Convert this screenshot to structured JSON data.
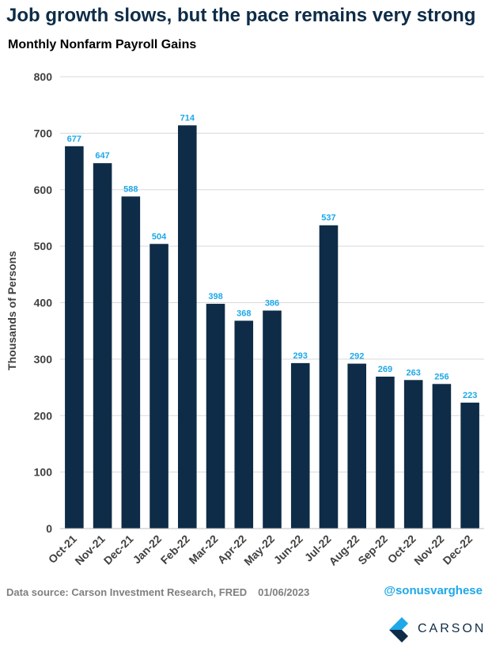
{
  "headline": "Job growth slows, but the pace remains very strong",
  "chart_data": {
    "type": "bar",
    "title": "Monthly Nonfarm Payroll Gains",
    "xlabel": "",
    "ylabel": "Thousands of Persons",
    "ylim": [
      0,
      800
    ],
    "yticks": [
      0,
      100,
      200,
      300,
      400,
      500,
      600,
      700,
      800
    ],
    "grid": true,
    "categories": [
      "Oct-21",
      "Nov-21",
      "Dec-21",
      "Jan-22",
      "Feb-22",
      "Mar-22",
      "Apr-22",
      "May-22",
      "Jun-22",
      "Jul-22",
      "Aug-22",
      "Sep-22",
      "Oct-22",
      "Nov-22",
      "Dec-22"
    ],
    "values": [
      677,
      647,
      588,
      504,
      714,
      398,
      368,
      386,
      293,
      537,
      292,
      269,
      263,
      256,
      223
    ],
    "bar_color": "#0e2c47",
    "label_color": "#1ea8e8"
  },
  "footer": {
    "source": "Data source: Carson Investment Research, FRED",
    "date": "01/06/2023",
    "handle": "@sonusvarghese",
    "logo_text": "CARSON"
  }
}
